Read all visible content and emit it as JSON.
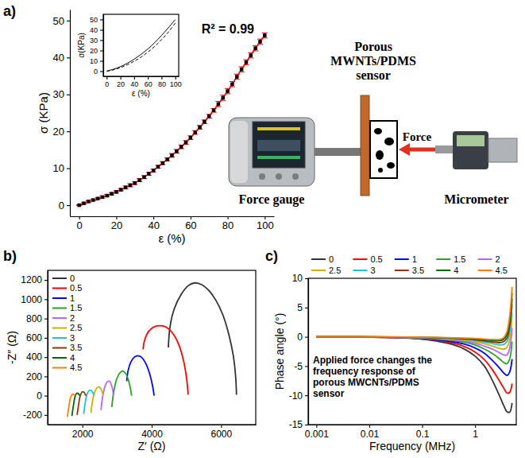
{
  "chart_data": [
    {
      "panel": "a)",
      "type": "scatter",
      "x_label": "ε (%)",
      "y_label": "σ (KPa)",
      "x": [
        0,
        2.5,
        5,
        7.5,
        10,
        12.5,
        15,
        17.5,
        20,
        22.5,
        25,
        27.5,
        30,
        32.5,
        35,
        37.5,
        40,
        42.5,
        45,
        47.5,
        50,
        52.5,
        55,
        57.5,
        60,
        62.5,
        65,
        67.5,
        70,
        72.5,
        75,
        77.5,
        80,
        82.5,
        85,
        87.5,
        90,
        92.5,
        95,
        97.5,
        100
      ],
      "xlim": [
        -5,
        105
      ],
      "xticks": [
        0,
        20,
        40,
        60,
        80,
        100
      ],
      "ylim": [
        -3,
        53
      ],
      "yticks": [
        0,
        10,
        20,
        30,
        40,
        50
      ],
      "annotations": [
        "R² = 0.99",
        "Porous MWNTs/PDMS sensor",
        "Force",
        "Force gauge",
        "Micrometer"
      ],
      "series": [
        {
          "type": "line",
          "color": "#ff0000",
          "line_style": "solid",
          "values": [
            0,
            0.5,
            1.0,
            1.4,
            1.8,
            2.2,
            2.6,
            3.1,
            3.6,
            4.2,
            4.8,
            5.4,
            6.0,
            6.8,
            7.6,
            8.5,
            9.4,
            10.4,
            11.4,
            12.4,
            13.5,
            14.6,
            15.8,
            17.0,
            18.3,
            19.7,
            21.1,
            22.6,
            24.1,
            25.7,
            27.4,
            29.1,
            30.9,
            32.8,
            34.8,
            36.8,
            38.7,
            40.6,
            42.5,
            44.3,
            46
          ]
        },
        {
          "type": "scatter",
          "color": "#000000",
          "marker": "square",
          "values": [
            0,
            0.5,
            1.0,
            1.4,
            1.8,
            2.2,
            2.6,
            3.1,
            3.6,
            4.2,
            4.8,
            5.4,
            6.0,
            6.8,
            7.6,
            8.5,
            9.4,
            10.4,
            11.4,
            12.4,
            13.5,
            14.6,
            15.8,
            17.0,
            18.3,
            19.7,
            21.1,
            22.6,
            24.1,
            25.7,
            27.4,
            29.1,
            30.9,
            32.8,
            34.8,
            36.8,
            38.7,
            40.6,
            42.5,
            44.3,
            46
          ],
          "errors": [
            0.1,
            0.2,
            0.2,
            0.2,
            0.2,
            0.3,
            0.3,
            0.3,
            0.3,
            0.3,
            0.4,
            0.4,
            0.4,
            0.4,
            0.4,
            0.4,
            0.4,
            0.4,
            0.4,
            0.4,
            0.5,
            0.5,
            0.5,
            0.5,
            0.5,
            0.5,
            0.5,
            0.5,
            0.5,
            0.5,
            0.7,
            0.7,
            0.7,
            0.7,
            0.7,
            0.7,
            0.7,
            0.7,
            0.7,
            0.7,
            0.7
          ]
        }
      ]
    },
    {
      "type": "line",
      "x_label": "ε (%)",
      "y_label": "σ(KPa)",
      "x": [
        0,
        10,
        20,
        30,
        40,
        50,
        60,
        70,
        80,
        90,
        100
      ],
      "xlim": [
        -5,
        105
      ],
      "xticks": [
        0,
        20,
        40,
        60,
        80,
        100
      ],
      "ylim": [
        -5,
        55
      ],
      "yticks": [
        0,
        10,
        20,
        30,
        40,
        50
      ],
      "series": [
        {
          "color": "#000000",
          "line_style": "solid",
          "values": [
            0.3,
            1.9,
            4.4,
            7.6,
            11.6,
            16.2,
            21.5,
            27.6,
            34.6,
            42,
            50
          ]
        },
        {
          "color": "#000000",
          "line_style": "dashed",
          "values": [
            -0.3,
            1.3,
            3.4,
            6.2,
            9.6,
            13.6,
            18.4,
            24,
            30.5,
            37.8,
            46.5
          ]
        }
      ]
    },
    {
      "panel": "b)",
      "type": "line",
      "x_label": "Z′ (Ω)",
      "y_label": "-Z″ (Ω)",
      "xlim": [
        1000,
        7000
      ],
      "xticks": [
        2000,
        4000,
        6000
      ],
      "ylim": [
        -300,
        1300
      ],
      "yticks": [
        -200,
        0,
        200,
        400,
        600,
        800,
        1000,
        1200
      ],
      "legend": "top-left",
      "series": [
        {
          "name": "0",
          "color": "#333333",
          "x": [
            4480,
            4530,
            4650,
            4850,
            5050,
            5250,
            5450,
            5650,
            5850,
            6050,
            6220,
            6350,
            6420,
            6445
          ],
          "values": [
            500,
            720,
            900,
            1050,
            1140,
            1170,
            1150,
            1090,
            990,
            840,
            640,
            420,
            200,
            10
          ]
        },
        {
          "name": "0.5",
          "color": "#ff0000",
          "x": [
            3750,
            3800,
            3920,
            4080,
            4250,
            4420,
            4600,
            4780,
            4920,
            5010,
            5050
          ],
          "values": [
            480,
            580,
            670,
            715,
            725,
            710,
            650,
            530,
            360,
            170,
            10
          ]
        },
        {
          "name": "1",
          "color": "#0000ff",
          "x": [
            3280,
            3320,
            3400,
            3500,
            3600,
            3700,
            3820,
            3930,
            4020,
            4070
          ],
          "values": [
            150,
            260,
            350,
            400,
            415,
            400,
            340,
            240,
            110,
            0
          ]
        },
        {
          "name": "1.5",
          "color": "#2ca02c",
          "x": [
            2850,
            2900,
            2980,
            3070,
            3160,
            3250,
            3330,
            3390,
            3420
          ],
          "values": [
            -120,
            30,
            160,
            230,
            255,
            230,
            160,
            70,
            0
          ]
        },
        {
          "name": "2",
          "color": "#b266ff",
          "x": [
            2540,
            2580,
            2640,
            2710,
            2780,
            2840,
            2880,
            2900
          ],
          "values": [
            -150,
            -20,
            80,
            140,
            150,
            110,
            50,
            0
          ]
        },
        {
          "name": "2.5",
          "color": "#c9b200",
          "x": [
            2250,
            2290,
            2350,
            2420,
            2490,
            2550,
            2590,
            2605
          ],
          "values": [
            -180,
            -60,
            30,
            80,
            90,
            60,
            20,
            0
          ]
        },
        {
          "name": "3",
          "color": "#22bfd6",
          "x": [
            2040,
            2080,
            2140,
            2200,
            2260,
            2310,
            2345
          ],
          "values": [
            -190,
            -80,
            20,
            55,
            55,
            25,
            0
          ]
        },
        {
          "name": "3.5",
          "color": "#8b3a0f",
          "x": [
            1850,
            1890,
            1940,
            2000,
            2050,
            2090,
            2105
          ],
          "values": [
            -200,
            -100,
            0,
            40,
            35,
            10,
            0
          ]
        },
        {
          "name": "4",
          "color": "#006400",
          "x": [
            1700,
            1740,
            1790,
            1840,
            1890,
            1925
          ],
          "values": [
            -210,
            -110,
            -10,
            25,
            20,
            0
          ]
        },
        {
          "name": "4.5",
          "color": "#ff7f0e",
          "x": [
            1570,
            1610,
            1660,
            1710,
            1760,
            1795
          ],
          "values": [
            -220,
            -120,
            -20,
            15,
            10,
            0
          ]
        }
      ]
    },
    {
      "panel": "c)",
      "type": "line",
      "log": "x",
      "x_label": "Frequency (MHz)",
      "y_label": "Phase angle (°)",
      "x": [
        0.001,
        0.003,
        0.01,
        0.03,
        0.1,
        0.3,
        0.6,
        1,
        1.5,
        2,
        2.5,
        3,
        3.5,
        4,
        4.5,
        5
      ],
      "xlim": [
        0.0007,
        6
      ],
      "xticks": [
        0.001,
        0.01,
        0.1,
        1
      ],
      "ylim": [
        -15,
        10
      ],
      "yticks": [
        -15,
        -10,
        -5,
        0,
        5,
        10
      ],
      "legend": "top",
      "annotations": [
        "Applied force changes the frequency response of porous MWCNTs/PDMS sensor"
      ],
      "series": [
        {
          "name": "0",
          "color": "#333333",
          "values": [
            0,
            0,
            -0.05,
            -0.15,
            -0.4,
            -1.1,
            -2,
            -3.3,
            -5,
            -7,
            -8.8,
            -10.4,
            -11.8,
            -12.8,
            -12.9,
            -11.3
          ]
        },
        {
          "name": "0.5",
          "color": "#ff0000",
          "values": [
            0,
            0,
            -0.05,
            -0.12,
            -0.35,
            -0.9,
            -1.6,
            -2.6,
            -3.9,
            -5.3,
            -6.6,
            -7.8,
            -8.8,
            -9.6,
            -9.5,
            -8
          ]
        },
        {
          "name": "1",
          "color": "#0000ff",
          "values": [
            0,
            0,
            -0.04,
            -0.1,
            -0.3,
            -0.7,
            -1.2,
            -1.9,
            -2.8,
            -3.8,
            -4.7,
            -5.5,
            -6.2,
            -6.6,
            -6,
            -3.8
          ]
        },
        {
          "name": "1.5",
          "color": "#2ca02c",
          "values": [
            0,
            0,
            -0.03,
            -0.08,
            -0.25,
            -0.55,
            -0.9,
            -1.4,
            -2.1,
            -2.7,
            -3.3,
            -3.9,
            -4.4,
            -4.6,
            -3.8,
            -0.8
          ]
        },
        {
          "name": "2",
          "color": "#b266ff",
          "values": [
            0,
            0,
            -0.03,
            -0.07,
            -0.2,
            -0.45,
            -0.7,
            -1.1,
            -1.6,
            -2,
            -2.4,
            -2.8,
            -3.1,
            -3.1,
            -2,
            1.5
          ]
        },
        {
          "name": "2.5",
          "color": "#c9b200",
          "values": [
            0,
            0,
            -0.02,
            -0.06,
            -0.15,
            -0.35,
            -0.55,
            -0.85,
            -1.2,
            -1.5,
            -1.8,
            -2,
            -2.1,
            -1.8,
            -0.5,
            4
          ]
        },
        {
          "name": "3",
          "color": "#22bfd6",
          "values": [
            0,
            0,
            -0.02,
            -0.05,
            -0.12,
            -0.28,
            -0.45,
            -0.65,
            -0.9,
            -1.1,
            -1.3,
            -1.4,
            -1.3,
            -0.8,
            0.8,
            5.5
          ]
        },
        {
          "name": "3.5",
          "color": "#8b3a0f",
          "values": [
            0,
            0,
            -0.02,
            -0.04,
            -0.1,
            -0.22,
            -0.35,
            -0.5,
            -0.7,
            -0.85,
            -0.95,
            -1,
            -0.8,
            -0.2,
            1.8,
            6.5
          ]
        },
        {
          "name": "4",
          "color": "#006400",
          "values": [
            0,
            0,
            -0.01,
            -0.03,
            -0.08,
            -0.17,
            -0.27,
            -0.38,
            -0.52,
            -0.62,
            -0.68,
            -0.65,
            -0.4,
            0.4,
            2.7,
            7.5
          ]
        },
        {
          "name": "4.5",
          "color": "#ff7f0e",
          "values": [
            0,
            0,
            -0.01,
            -0.02,
            -0.06,
            -0.13,
            -0.2,
            -0.28,
            -0.38,
            -0.45,
            -0.48,
            -0.42,
            -0.1,
            0.9,
            3.5,
            8.5
          ]
        }
      ]
    }
  ]
}
